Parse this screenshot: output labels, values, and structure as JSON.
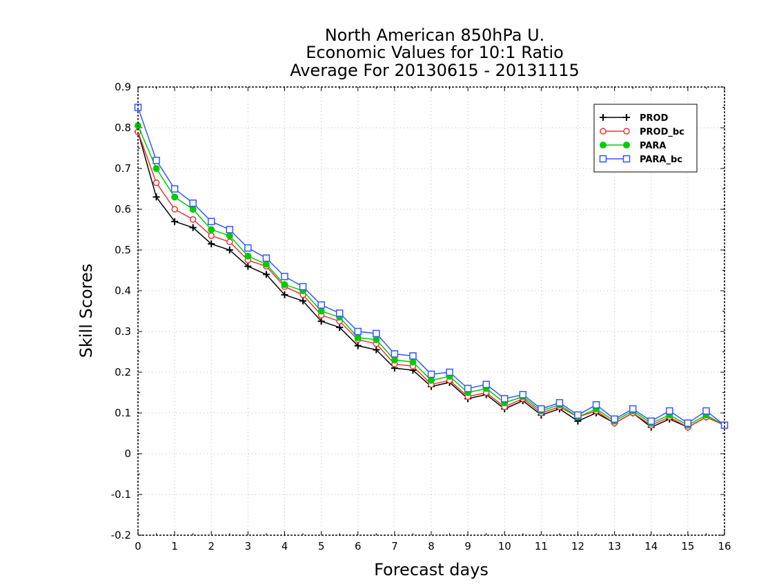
{
  "chart_data": {
    "type": "line",
    "title_lines": [
      "North American 850hPa U.",
      "Economic Values for 10:1 Ratio",
      "Average For 20130615 - 20131115"
    ],
    "xlabel": "Forecast days",
    "ylabel": "Skill Scores",
    "xlim": [
      0,
      16
    ],
    "ylim": [
      -0.2,
      0.9
    ],
    "xticks": [
      0,
      1,
      2,
      3,
      4,
      5,
      6,
      7,
      8,
      9,
      10,
      11,
      12,
      13,
      14,
      15,
      16
    ],
    "yticks": [
      -0.2,
      -0.1,
      0,
      0.1,
      0.2,
      0.3,
      0.4,
      0.5,
      0.6,
      0.7,
      0.8,
      0.9
    ],
    "ytick_labels": [
      "-0.2",
      "-0.1",
      "0",
      "0.1",
      "0.2",
      "0.3",
      "0.4",
      "0.5",
      "0.6",
      "0.7",
      "0.8",
      "0.9"
    ],
    "grid": true,
    "legend_position": "top-right",
    "x": [
      0,
      0.5,
      1,
      1.5,
      2,
      2.5,
      3,
      3.5,
      4,
      4.5,
      5,
      5.5,
      6,
      6.5,
      7,
      7.5,
      8,
      8.5,
      9,
      9.5,
      10,
      10.5,
      11,
      11.5,
      12,
      12.5,
      13,
      13.5,
      14,
      14.5,
      15,
      15.5,
      16
    ],
    "series": [
      {
        "name": "PROD",
        "color": "#000000",
        "marker": "plus",
        "values": [
          0.79,
          0.63,
          0.57,
          0.555,
          0.515,
          0.5,
          0.46,
          0.44,
          0.39,
          0.375,
          0.325,
          0.31,
          0.265,
          0.255,
          0.21,
          0.205,
          0.165,
          0.175,
          0.135,
          0.145,
          0.11,
          0.13,
          0.095,
          0.11,
          0.08,
          0.1,
          0.075,
          0.1,
          0.065,
          0.085,
          0.065,
          0.09,
          0.07
        ]
      },
      {
        "name": "PROD_bc",
        "color": "#ee3333",
        "marker": "circle-open",
        "values": [
          0.79,
          0.665,
          0.6,
          0.575,
          0.535,
          0.52,
          0.475,
          0.46,
          0.41,
          0.39,
          0.34,
          0.325,
          0.28,
          0.27,
          0.22,
          0.215,
          0.17,
          0.18,
          0.14,
          0.15,
          0.115,
          0.135,
          0.1,
          0.115,
          0.09,
          0.105,
          0.075,
          0.1,
          0.07,
          0.09,
          0.065,
          0.09,
          0.07
        ]
      },
      {
        "name": "PARA",
        "color": "#00cc00",
        "marker": "circle-filled",
        "values": [
          0.805,
          0.7,
          0.63,
          0.6,
          0.55,
          0.535,
          0.485,
          0.465,
          0.415,
          0.4,
          0.35,
          0.335,
          0.285,
          0.28,
          0.23,
          0.225,
          0.18,
          0.19,
          0.15,
          0.16,
          0.125,
          0.14,
          0.105,
          0.12,
          0.09,
          0.11,
          0.08,
          0.105,
          0.075,
          0.095,
          0.07,
          0.095,
          0.07
        ]
      },
      {
        "name": "PARA_bc",
        "color": "#3355ff",
        "marker": "square-open",
        "values": [
          0.85,
          0.72,
          0.65,
          0.615,
          0.57,
          0.55,
          0.505,
          0.48,
          0.435,
          0.41,
          0.365,
          0.345,
          0.3,
          0.295,
          0.245,
          0.24,
          0.195,
          0.2,
          0.16,
          0.17,
          0.135,
          0.145,
          0.11,
          0.125,
          0.095,
          0.12,
          0.085,
          0.11,
          0.08,
          0.105,
          0.075,
          0.105,
          0.07
        ]
      }
    ]
  }
}
